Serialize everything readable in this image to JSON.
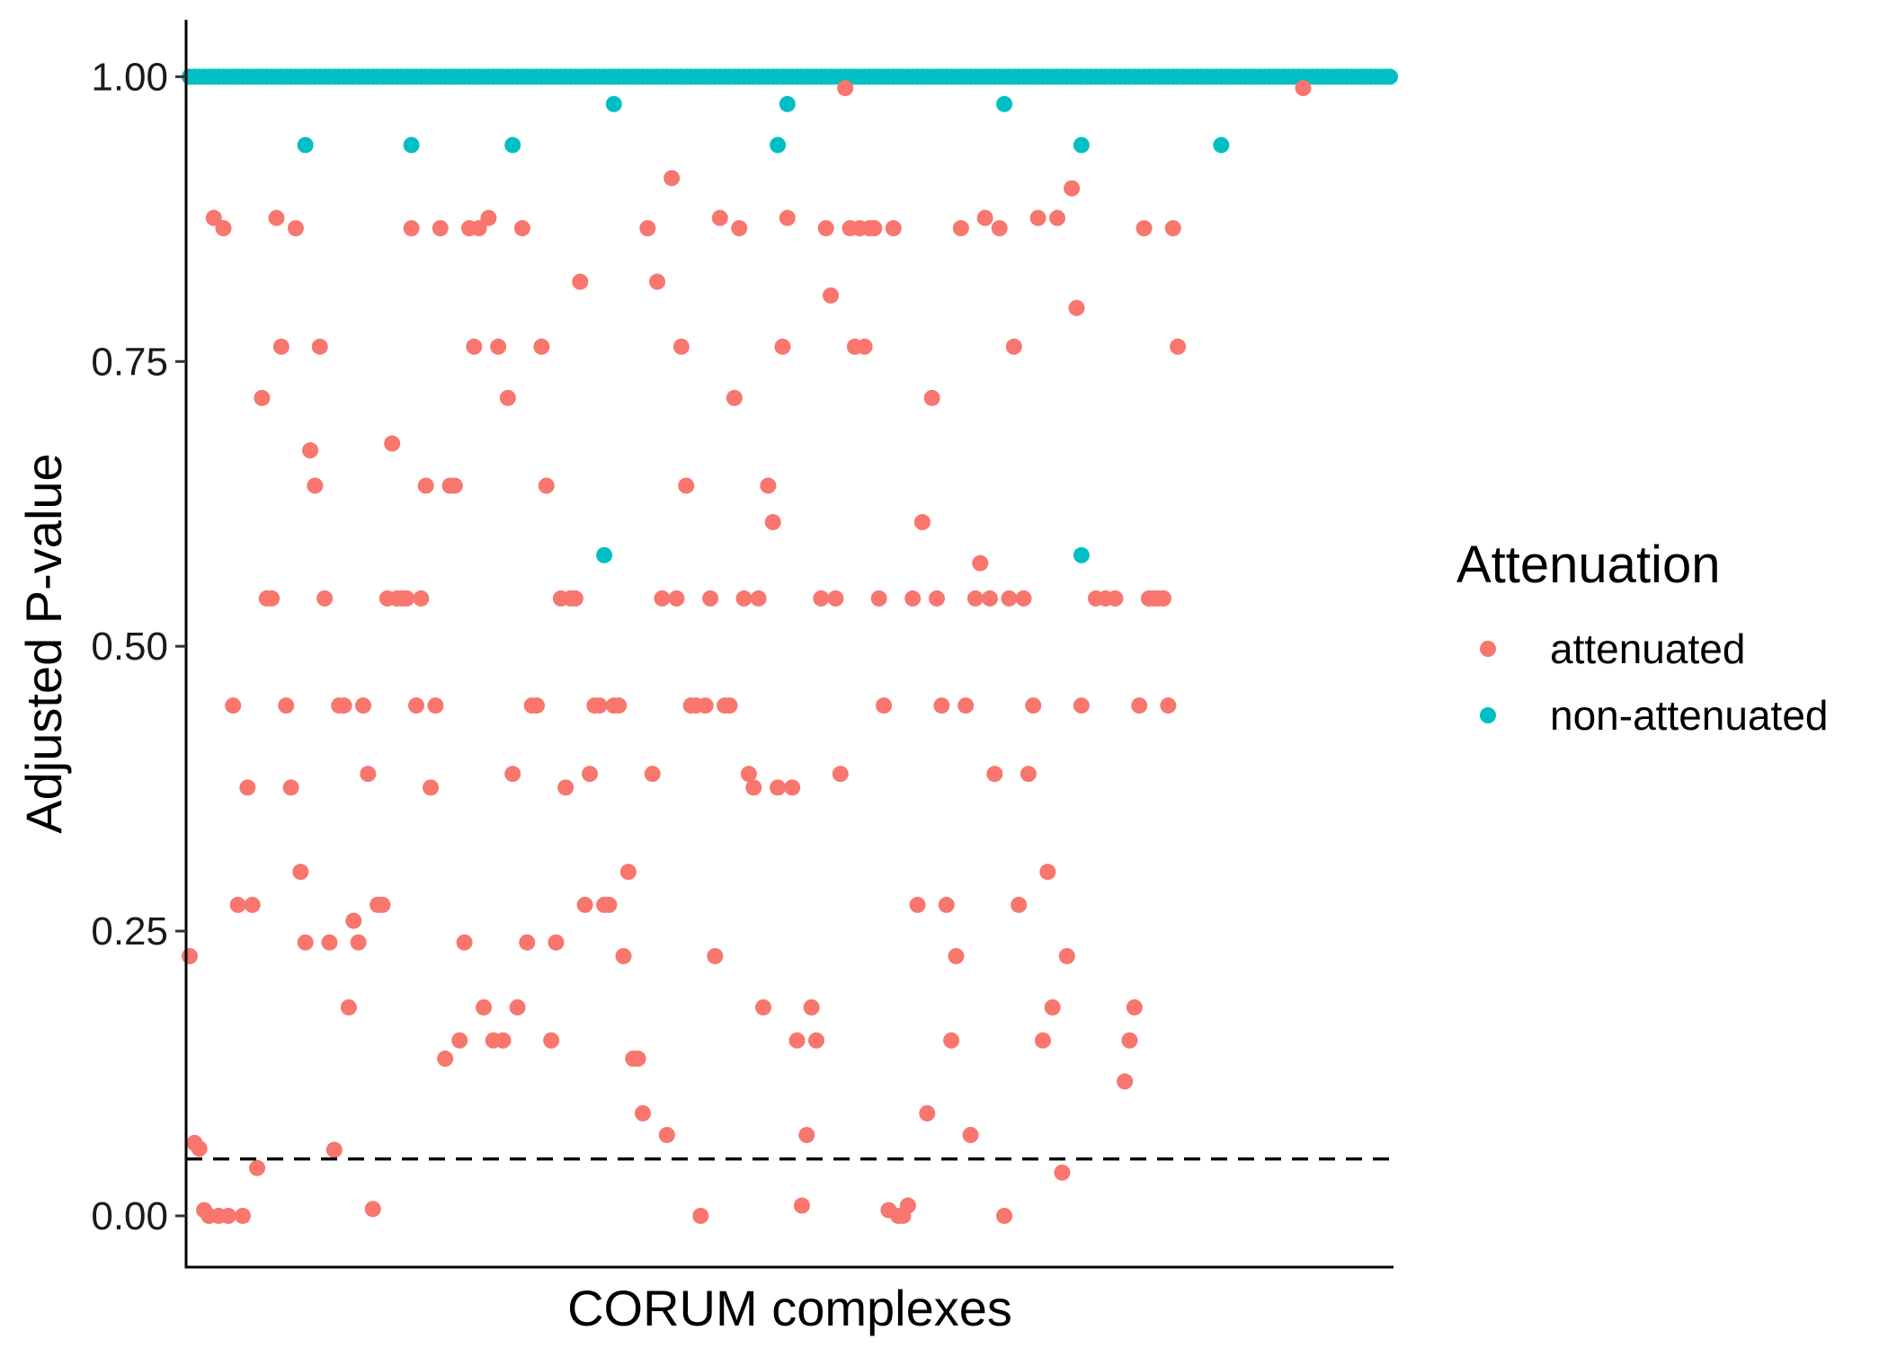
{
  "chart_data": {
    "type": "scatter",
    "title": "",
    "xlabel": "CORUM complexes",
    "ylabel": "Adjusted P-value",
    "yticks": [
      "0.00",
      "0.25",
      "0.50",
      "0.75",
      "1.00"
    ],
    "ytick_values": [
      0,
      0.25,
      0.5,
      0.75,
      1.0
    ],
    "ylim": [
      -0.045,
      1.05
    ],
    "grid": false,
    "threshold": 0.05,
    "legend": {
      "title": "Attenuation",
      "position": "right",
      "entries": [
        {
          "label": "attenuated",
          "color": "#F8766D"
        },
        {
          "label": "non-attenuated",
          "color": "#00BFC4"
        }
      ]
    },
    "x_note": "x positions are complex indices 1..250 (no tick labels shown)",
    "x_count": 250,
    "series": [
      {
        "name": "attenuated",
        "color": "#F8766D",
        "points": [
          [
            1,
            0.228
          ],
          [
            2,
            0.064
          ],
          [
            3,
            0.059
          ],
          [
            4,
            0.005
          ],
          [
            5,
            0.0
          ],
          [
            6,
            0.876
          ],
          [
            7,
            0.0
          ],
          [
            8,
            0.867
          ],
          [
            9,
            0.0
          ],
          [
            10,
            0.448
          ],
          [
            11,
            0.273
          ],
          [
            12,
            0.0
          ],
          [
            13,
            0.376
          ],
          [
            14,
            0.273
          ],
          [
            15,
            0.042
          ],
          [
            16,
            0.718
          ],
          [
            17,
            0.542
          ],
          [
            18,
            0.542
          ],
          [
            19,
            0.876
          ],
          [
            20,
            0.763
          ],
          [
            21,
            0.448
          ],
          [
            22,
            0.376
          ],
          [
            23,
            0.867
          ],
          [
            24,
            0.302
          ],
          [
            25,
            0.24
          ],
          [
            26,
            0.672
          ],
          [
            27,
            0.641
          ],
          [
            28,
            0.763
          ],
          [
            29,
            0.542
          ],
          [
            30,
            0.24
          ],
          [
            31,
            0.058
          ],
          [
            32,
            0.448
          ],
          [
            33,
            0.448
          ],
          [
            34,
            0.183
          ],
          [
            35,
            0.259
          ],
          [
            36,
            0.24
          ],
          [
            37,
            0.448
          ],
          [
            38,
            0.388
          ],
          [
            39,
            0.006
          ],
          [
            40,
            0.273
          ],
          [
            41,
            0.273
          ],
          [
            42,
            0.542
          ],
          [
            43,
            0.678
          ],
          [
            44,
            0.542
          ],
          [
            45,
            0.542
          ],
          [
            46,
            0.542
          ],
          [
            47,
            0.867
          ],
          [
            48,
            0.448
          ],
          [
            49,
            0.542
          ],
          [
            50,
            0.641
          ],
          [
            51,
            0.376
          ],
          [
            52,
            0.448
          ],
          [
            53,
            0.867
          ],
          [
            54,
            0.138
          ],
          [
            55,
            0.641
          ],
          [
            56,
            0.641
          ],
          [
            57,
            0.154
          ],
          [
            58,
            0.24
          ],
          [
            59,
            0.867
          ],
          [
            60,
            0.763
          ],
          [
            61,
            0.867
          ],
          [
            62,
            0.183
          ],
          [
            63,
            0.876
          ],
          [
            64,
            0.154
          ],
          [
            65,
            0.763
          ],
          [
            66,
            0.154
          ],
          [
            67,
            0.718
          ],
          [
            68,
            0.388
          ],
          [
            69,
            0.183
          ],
          [
            70,
            0.867
          ],
          [
            71,
            0.24
          ],
          [
            72,
            0.448
          ],
          [
            73,
            0.448
          ],
          [
            74,
            0.763
          ],
          [
            75,
            0.641
          ],
          [
            76,
            0.154
          ],
          [
            77,
            0.24
          ],
          [
            78,
            0.542
          ],
          [
            79,
            0.376
          ],
          [
            80,
            0.542
          ],
          [
            81,
            0.542
          ],
          [
            82,
            0.82
          ],
          [
            83,
            0.273
          ],
          [
            84,
            0.388
          ],
          [
            85,
            0.448
          ],
          [
            86,
            0.448
          ],
          [
            87,
            0.273
          ],
          [
            88,
            0.273
          ],
          [
            89,
            0.448
          ],
          [
            90,
            0.448
          ],
          [
            91,
            0.228
          ],
          [
            92,
            0.302
          ],
          [
            93,
            0.138
          ],
          [
            94,
            0.138
          ],
          [
            95,
            0.09
          ],
          [
            96,
            0.867
          ],
          [
            97,
            0.388
          ],
          [
            98,
            0.82
          ],
          [
            99,
            0.542
          ],
          [
            100,
            0.071
          ],
          [
            101,
            0.911
          ],
          [
            102,
            0.542
          ],
          [
            103,
            0.763
          ],
          [
            104,
            0.641
          ],
          [
            105,
            0.448
          ],
          [
            106,
            0.448
          ],
          [
            107,
            0.0
          ],
          [
            108,
            0.448
          ],
          [
            109,
            0.542
          ],
          [
            110,
            0.228
          ],
          [
            111,
            0.876
          ],
          [
            112,
            0.448
          ],
          [
            113,
            0.448
          ],
          [
            114,
            0.718
          ],
          [
            115,
            0.867
          ],
          [
            116,
            0.542
          ],
          [
            117,
            0.388
          ],
          [
            118,
            0.376
          ],
          [
            119,
            0.542
          ],
          [
            120,
            0.183
          ],
          [
            121,
            0.641
          ],
          [
            122,
            0.609
          ],
          [
            123,
            0.376
          ],
          [
            124,
            0.763
          ],
          [
            125,
            0.876
          ],
          [
            126,
            0.376
          ],
          [
            127,
            0.154
          ],
          [
            128,
            0.009
          ],
          [
            129,
            0.071
          ],
          [
            130,
            0.183
          ],
          [
            131,
            0.154
          ],
          [
            132,
            0.542
          ],
          [
            133,
            0.867
          ],
          [
            134,
            0.808
          ],
          [
            135,
            0.542
          ],
          [
            136,
            0.388
          ],
          [
            137,
            0.99
          ],
          [
            138,
            0.867
          ],
          [
            139,
            0.763
          ],
          [
            140,
            0.867
          ],
          [
            141,
            0.763
          ],
          [
            142,
            0.867
          ],
          [
            143,
            0.867
          ],
          [
            144,
            0.542
          ],
          [
            145,
            0.448
          ],
          [
            146,
            0.005
          ],
          [
            147,
            0.867
          ],
          [
            148,
            0.0
          ],
          [
            149,
            0.0
          ],
          [
            150,
            0.009
          ],
          [
            151,
            0.542
          ],
          [
            152,
            0.273
          ],
          [
            153,
            0.609
          ],
          [
            154,
            0.09
          ],
          [
            155,
            0.718
          ],
          [
            156,
            0.542
          ],
          [
            157,
            0.448
          ],
          [
            158,
            0.273
          ],
          [
            159,
            0.154
          ],
          [
            160,
            0.228
          ],
          [
            161,
            0.867
          ],
          [
            162,
            0.448
          ],
          [
            163,
            0.071
          ],
          [
            164,
            0.542
          ],
          [
            165,
            0.573
          ],
          [
            166,
            0.876
          ],
          [
            167,
            0.542
          ],
          [
            168,
            0.388
          ],
          [
            169,
            0.867
          ],
          [
            170,
            0.0
          ],
          [
            171,
            0.542
          ],
          [
            172,
            0.763
          ],
          [
            173,
            0.273
          ],
          [
            174,
            0.542
          ],
          [
            175,
            0.388
          ],
          [
            176,
            0.448
          ],
          [
            177,
            0.876
          ],
          [
            178,
            0.154
          ],
          [
            179,
            0.302
          ],
          [
            180,
            0.183
          ],
          [
            181,
            0.876
          ],
          [
            182,
            0.038
          ],
          [
            183,
            0.228
          ],
          [
            184,
            0.902
          ],
          [
            185,
            0.797
          ],
          [
            186,
            0.448
          ],
          [
            189,
            0.542
          ],
          [
            191,
            0.542
          ],
          [
            193,
            0.542
          ],
          [
            195,
            0.118
          ],
          [
            196,
            0.154
          ],
          [
            197,
            0.183
          ],
          [
            198,
            0.448
          ],
          [
            199,
            0.867
          ],
          [
            200,
            0.542
          ],
          [
            201,
            0.542
          ],
          [
            202,
            0.542
          ],
          [
            203,
            0.542
          ],
          [
            204,
            0.448
          ],
          [
            205,
            0.867
          ],
          [
            206,
            0.763
          ],
          [
            232,
            0.99
          ]
        ]
      },
      {
        "name": "non-attenuated",
        "color": "#00BFC4",
        "outliers": [
          [
            25,
            0.94
          ],
          [
            47,
            0.94
          ],
          [
            68,
            0.94
          ],
          [
            87,
            0.58
          ],
          [
            89,
            0.976
          ],
          [
            123,
            0.94
          ],
          [
            125,
            0.976
          ],
          [
            170,
            0.976
          ],
          [
            186,
            0.58
          ],
          [
            186,
            0.94
          ],
          [
            215,
            0.94
          ]
        ],
        "baseline_value": 1.0,
        "baseline_note": "remaining complexes at adjusted P-value 1.00"
      }
    ]
  }
}
